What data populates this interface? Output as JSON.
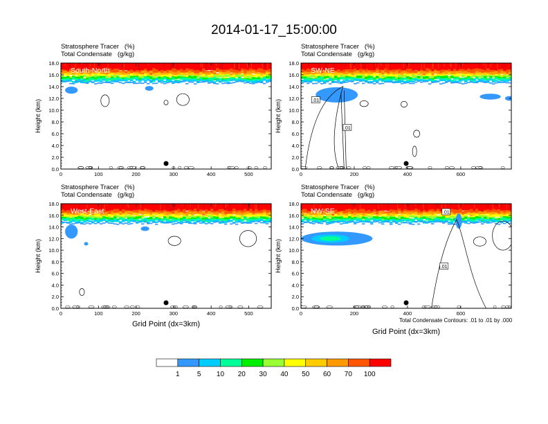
{
  "title": "2014-01-17_15:00:00",
  "footnote": "Total Condensate Contours: .01 to .01 by .000",
  "colors": {
    "levels": [
      "#ffffff",
      "#3399ff",
      "#00ccff",
      "#00ff99",
      "#00ee00",
      "#99ff33",
      "#ffff00",
      "#ffcc00",
      "#ff9900",
      "#ff5500",
      "#ff0000"
    ],
    "contour": "#000000"
  },
  "colorbar": {
    "labels": [
      "1",
      "5",
      "10",
      "20",
      "30",
      "40",
      "50",
      "60",
      "70",
      "100"
    ]
  },
  "chart_data": [
    {
      "type": "heatmap",
      "header": [
        "Stratosphere Tracer   (%)",
        "Total Condensate   (g/kg)"
      ],
      "label": "South-North",
      "ylabel": "Height (km)",
      "xlabel": "",
      "yticks": [
        "0.0",
        "2.0",
        "4.0",
        "6.0",
        "8.0",
        "10.0",
        "12.0",
        "14.0",
        "16.0",
        "18.0"
      ],
      "xticks": [
        "0",
        "100",
        "200",
        "300",
        "400",
        "500"
      ],
      "xlim": [
        0,
        560
      ],
      "ylim": [
        0,
        18
      ],
      "marker_x": 280,
      "contour_labels": []
    },
    {
      "type": "heatmap",
      "header": [
        "Stratosphere Tracer   (%)",
        "Total Condensate   (g/kg)"
      ],
      "label": "SW-NE",
      "ylabel": "Height (km)",
      "xlabel": "",
      "yticks": [
        "0.0",
        "2.0",
        "4.0",
        "6.0",
        "8.0",
        "10.0",
        "12.0",
        "14.0",
        "16.0",
        "18.0"
      ],
      "xticks": [
        "0",
        "200",
        "400",
        "600"
      ],
      "xlim": [
        0,
        790
      ],
      "ylim": [
        0,
        18
      ],
      "marker_x": 395,
      "contour_labels": [
        ".01",
        ".01"
      ]
    },
    {
      "type": "heatmap",
      "header": [
        "Stratosphere Tracer   (%)",
        "Total Condensate   (g/kg)"
      ],
      "label": "West-East",
      "ylabel": "Height (km)",
      "xlabel": "Grid Point (dx=3km)",
      "yticks": [
        "0.0",
        "2.0",
        "4.0",
        "6.0",
        "8.0",
        "10.0",
        "12.0",
        "14.0",
        "16.0",
        "18.0"
      ],
      "xticks": [
        "0",
        "100",
        "200",
        "300",
        "400",
        "500"
      ],
      "xlim": [
        0,
        560
      ],
      "ylim": [
        0,
        18
      ],
      "marker_x": 280,
      "contour_labels": []
    },
    {
      "type": "heatmap",
      "header": [
        "Stratosphere Tracer   (%)",
        "Total Condensate   (g/kg)"
      ],
      "label": "NW-SE",
      "ylabel": "Height (km)",
      "xlabel": "Grid Point (dx=3km)",
      "yticks": [
        "0.0",
        "2.0",
        "4.0",
        "6.0",
        "8.0",
        "10.0",
        "12.0",
        "14.0",
        "16.0",
        "18.0"
      ],
      "xticks": [
        "0",
        "200",
        "400",
        "600"
      ],
      "xlim": [
        0,
        790
      ],
      "ylim": [
        0,
        18
      ],
      "marker_x": 395,
      "contour_labels": [
        ".01",
        ".01"
      ]
    }
  ]
}
